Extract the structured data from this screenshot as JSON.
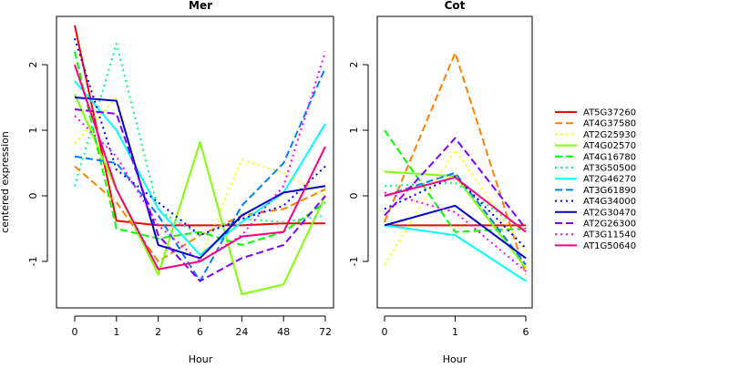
{
  "chart_data": {
    "type": "line",
    "ylabel": "centered expression",
    "yticks": [
      -1,
      0,
      1,
      2
    ],
    "ylim": [
      -1.7,
      2.85
    ],
    "legend_position": "right",
    "series_style": [
      {
        "name": "AT5G37260",
        "color": "#ff0000",
        "dash": "solid"
      },
      {
        "name": "AT4G37580",
        "color": "#ff8000",
        "dash": "dashed"
      },
      {
        "name": "AT2G25930",
        "color": "#ffff00",
        "dash": "dotted"
      },
      {
        "name": "AT4G02570",
        "color": "#80ff00",
        "dash": "solid"
      },
      {
        "name": "AT4G16780",
        "color": "#00ff00",
        "dash": "dashed"
      },
      {
        "name": "AT3G50500",
        "color": "#00ff80",
        "dash": "dotted"
      },
      {
        "name": "AT2G46270",
        "color": "#00ffff",
        "dash": "solid"
      },
      {
        "name": "AT3G61890",
        "color": "#0080ff",
        "dash": "dashed"
      },
      {
        "name": "AT4G34000",
        "color": "#0000ff",
        "dash": "dotted"
      },
      {
        "name": "AT2G30470",
        "color": "#0000cc",
        "dash": "solid"
      },
      {
        "name": "AT2G26300",
        "color": "#8000ff",
        "dash": "dashed"
      },
      {
        "name": "AT3G11540",
        "color": "#ff00ff",
        "dash": "dotted"
      },
      {
        "name": "AT1G50640",
        "color": "#ff0080",
        "dash": "solid"
      }
    ],
    "panels": [
      {
        "title": "Mer",
        "xlabel": "Hour",
        "categories": [
          "0",
          "1",
          "2",
          "6",
          "24",
          "48",
          "72"
        ],
        "series": [
          {
            "name": "AT5G37260",
            "values": [
              2.6,
              -0.38,
              -0.45,
              -0.45,
              -0.45,
              -0.42,
              -0.42
            ]
          },
          {
            "name": "AT4G37580",
            "values": [
              0.45,
              -0.1,
              -1.0,
              -0.6,
              -0.3,
              -0.2,
              0.1
            ]
          },
          {
            "name": "AT2G25930",
            "values": [
              0.8,
              1.5,
              -0.75,
              -0.95,
              0.55,
              0.35,
              0.0
            ]
          },
          {
            "name": "AT4G02570",
            "values": [
              1.55,
              0.1,
              -1.2,
              0.82,
              -1.5,
              -1.35,
              0.0
            ]
          },
          {
            "name": "AT4G16780",
            "values": [
              2.2,
              -0.5,
              -0.65,
              -0.55,
              -0.75,
              -0.55,
              -0.1
            ]
          },
          {
            "name": "AT3G50500",
            "values": [
              0.15,
              2.32,
              -0.22,
              -0.6,
              -0.35,
              -0.4,
              -0.3
            ]
          },
          {
            "name": "AT2G46270",
            "values": [
              1.75,
              1.0,
              -0.2,
              -0.9,
              -0.4,
              0.05,
              1.1
            ]
          },
          {
            "name": "AT3G61890",
            "values": [
              0.6,
              0.5,
              -0.3,
              -1.3,
              -0.15,
              0.5,
              1.95
            ]
          },
          {
            "name": "AT4G34000",
            "values": [
              2.4,
              0.4,
              -0.1,
              -0.6,
              -0.35,
              -0.15,
              0.45
            ]
          },
          {
            "name": "AT2G30470",
            "values": [
              1.5,
              1.45,
              -0.75,
              -0.95,
              -0.3,
              0.05,
              0.15
            ]
          },
          {
            "name": "AT2G26300",
            "values": [
              1.32,
              1.25,
              -0.6,
              -1.3,
              -0.95,
              -0.75,
              0.0
            ]
          },
          {
            "name": "AT3G11540",
            "values": [
              1.22,
              0.6,
              -0.45,
              -1.0,
              -0.6,
              0.15,
              2.2
            ]
          },
          {
            "name": "AT1G50640",
            "values": [
              2.0,
              0.1,
              -1.12,
              -1.0,
              -0.62,
              -0.55,
              0.75
            ]
          }
        ]
      },
      {
        "title": "Cot",
        "xlabel": "Hour",
        "categories": [
          "0",
          "1",
          "6"
        ],
        "series": [
          {
            "name": "AT5G37260",
            "values": [
              -0.45,
              -0.45,
              -0.45
            ]
          },
          {
            "name": "AT4G37580",
            "values": [
              -0.4,
              2.18,
              -1.2
            ]
          },
          {
            "name": "AT2G25930",
            "values": [
              -1.05,
              0.7,
              -0.85
            ]
          },
          {
            "name": "AT4G02570",
            "values": [
              0.37,
              0.3,
              -1.1
            ]
          },
          {
            "name": "AT4G16780",
            "values": [
              1.0,
              -0.55,
              -0.5
            ]
          },
          {
            "name": "AT3G50500",
            "values": [
              0.15,
              0.2,
              -0.55
            ]
          },
          {
            "name": "AT2G46270",
            "values": [
              -0.45,
              -0.6,
              -1.3
            ]
          },
          {
            "name": "AT3G61890",
            "values": [
              0.0,
              0.35,
              -1.05
            ]
          },
          {
            "name": "AT4G34000",
            "values": [
              -0.2,
              0.3,
              -0.8
            ]
          },
          {
            "name": "AT2G30470",
            "values": [
              -0.45,
              -0.15,
              -0.95
            ]
          },
          {
            "name": "AT2G26300",
            "values": [
              -0.3,
              0.88,
              -0.5
            ]
          },
          {
            "name": "AT3G11540",
            "values": [
              0.05,
              -0.25,
              -1.15
            ]
          },
          {
            "name": "AT1G50640",
            "values": [
              0.0,
              0.28,
              -0.55
            ]
          }
        ]
      }
    ]
  }
}
